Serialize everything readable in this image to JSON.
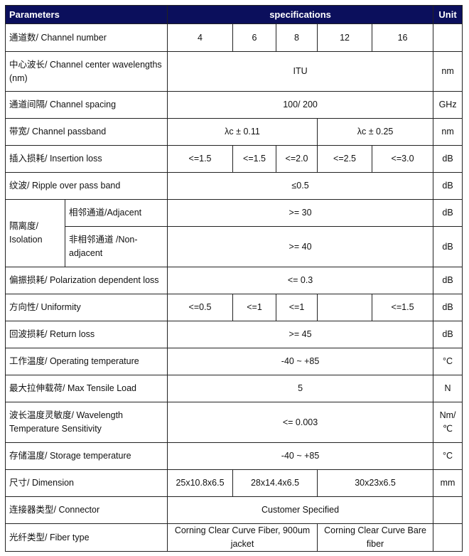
{
  "header": {
    "parameters": "Parameters",
    "specifications": "specifications",
    "unit": "Unit"
  },
  "header_color": "#0b0f5c",
  "rows": [
    {
      "param": "通道数/ Channel number",
      "values": [
        {
          "text": "4",
          "span": 1
        },
        {
          "text": "6",
          "span": 1
        },
        {
          "text": "8",
          "span": 1
        },
        {
          "text": "12",
          "span": 1
        },
        {
          "text": "16",
          "span": 1
        }
      ],
      "unit": ""
    },
    {
      "param": "中心波长/ Channel center wavelengths (nm)",
      "values": [
        {
          "text": "ITU",
          "span": 5
        }
      ],
      "unit": "nm"
    },
    {
      "param": "通道间隔/ Channel spacing",
      "values": [
        {
          "text": "100/ 200",
          "span": 5
        }
      ],
      "unit": "GHz"
    },
    {
      "param": "带宽/ Channel passband",
      "values": [
        {
          "text": "λc ± 0.11",
          "span": 3
        },
        {
          "text": "λc ± 0.25",
          "span": 2
        }
      ],
      "unit": "nm"
    },
    {
      "param": "插入损耗/ Insertion loss",
      "values": [
        {
          "text": "<=1.5",
          "span": 1
        },
        {
          "text": "<=1.5",
          "span": 1
        },
        {
          "text": "<=2.0",
          "span": 1
        },
        {
          "text": "<=2.5",
          "span": 1
        },
        {
          "text": "<=3.0",
          "span": 1
        }
      ],
      "unit": "dB"
    },
    {
      "param": "纹波/ Ripple over pass band",
      "values": [
        {
          "text": "≤0.5",
          "span": 5
        }
      ],
      "unit": "dB"
    },
    {
      "group": "隔离度/ Isolation",
      "param": "相邻通道/Adjacent",
      "values": [
        {
          "text": ">= 30",
          "span": 5
        }
      ],
      "unit": "dB"
    },
    {
      "param": "非相邻通道 /Non-adjacent",
      "values": [
        {
          "text": ">= 40",
          "span": 5
        }
      ],
      "unit": "dB"
    },
    {
      "param": "偏振损耗/ Polarization dependent loss",
      "values": [
        {
          "text": "<= 0.3",
          "span": 5
        }
      ],
      "unit": "dB"
    },
    {
      "param": "方向性/ Uniformity",
      "values": [
        {
          "text": "<=0.5",
          "span": 1
        },
        {
          "text": "<=1",
          "span": 1
        },
        {
          "text": "<=1",
          "span": 1
        },
        {
          "text": "",
          "span": 1
        },
        {
          "text": "<=1.5",
          "span": 1
        }
      ],
      "unit": "dB"
    },
    {
      "param": "回波损耗/ Return loss",
      "values": [
        {
          "text": ">= 45",
          "span": 5
        }
      ],
      "unit": "dB"
    },
    {
      "param": "工作温度/ Operating temperature",
      "values": [
        {
          "text": "-40 ~ +85",
          "span": 5
        }
      ],
      "unit": "°C"
    },
    {
      "param": "最大拉伸载荷/ Max Tensile Load",
      "values": [
        {
          "text": "5",
          "span": 5
        }
      ],
      "unit": "N"
    },
    {
      "param": "波长温度灵敏度/ Wavelength Temperature Sensitivity",
      "values": [
        {
          "text": "<= 0.003",
          "span": 5
        }
      ],
      "unit": "Nm/ ℃"
    },
    {
      "param": "存储温度/ Storage temperature",
      "values": [
        {
          "text": "-40 ~ +85",
          "span": 5
        }
      ],
      "unit": "°C"
    },
    {
      "param": "尺寸/ Dimension",
      "values": [
        {
          "text": "25x10.8x6.5",
          "span": 1
        },
        {
          "text": "28x14.4x6.5",
          "span": 2
        },
        {
          "text": "30x23x6.5",
          "span": 2
        }
      ],
      "unit": "mm"
    },
    {
      "param": "连接器类型/ Connector",
      "values": [
        {
          "text": "Customer Specified",
          "span": 5
        }
      ],
      "unit": ""
    },
    {
      "param": "光纤类型/ Fiber type",
      "values": [
        {
          "text": "Corning Clear Curve Fiber, 900um jacket",
          "span": 3
        },
        {
          "text": "Corning Clear Curve Bare fiber",
          "span": 2
        }
      ],
      "unit": ""
    }
  ]
}
